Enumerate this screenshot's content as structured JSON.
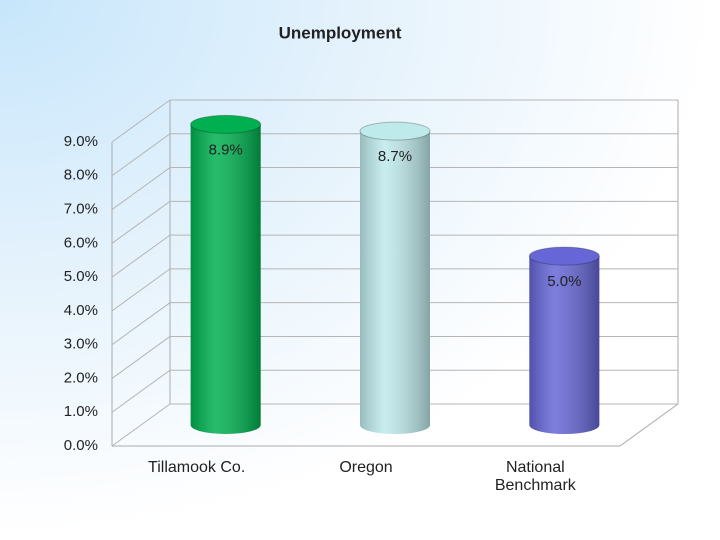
{
  "chart_data": {
    "type": "cylinder-bar",
    "title": "Unemployment",
    "categories": [
      "Tillamook Co.",
      "Oregon",
      "National Benchmark"
    ],
    "values": [
      8.9,
      8.7,
      5.0
    ],
    "value_labels": [
      "8.9%",
      "8.7%",
      "5.0%"
    ],
    "colors": [
      "#00b050",
      "#bfeaec",
      "#6666d6"
    ],
    "ylim": [
      0,
      9
    ],
    "yticks": [
      {
        "value": 0,
        "label": "0.0%"
      },
      {
        "value": 1,
        "label": "1.0%"
      },
      {
        "value": 2,
        "label": "2.0%"
      },
      {
        "value": 3,
        "label": "3.0%"
      },
      {
        "value": 4,
        "label": "4.0%"
      },
      {
        "value": 5,
        "label": "5.0%"
      },
      {
        "value": 6,
        "label": "6.0%"
      },
      {
        "value": 7,
        "label": "7.0%"
      },
      {
        "value": 8,
        "label": "8.0%"
      },
      {
        "value": 9,
        "label": "9.0%"
      }
    ],
    "grid": true
  }
}
